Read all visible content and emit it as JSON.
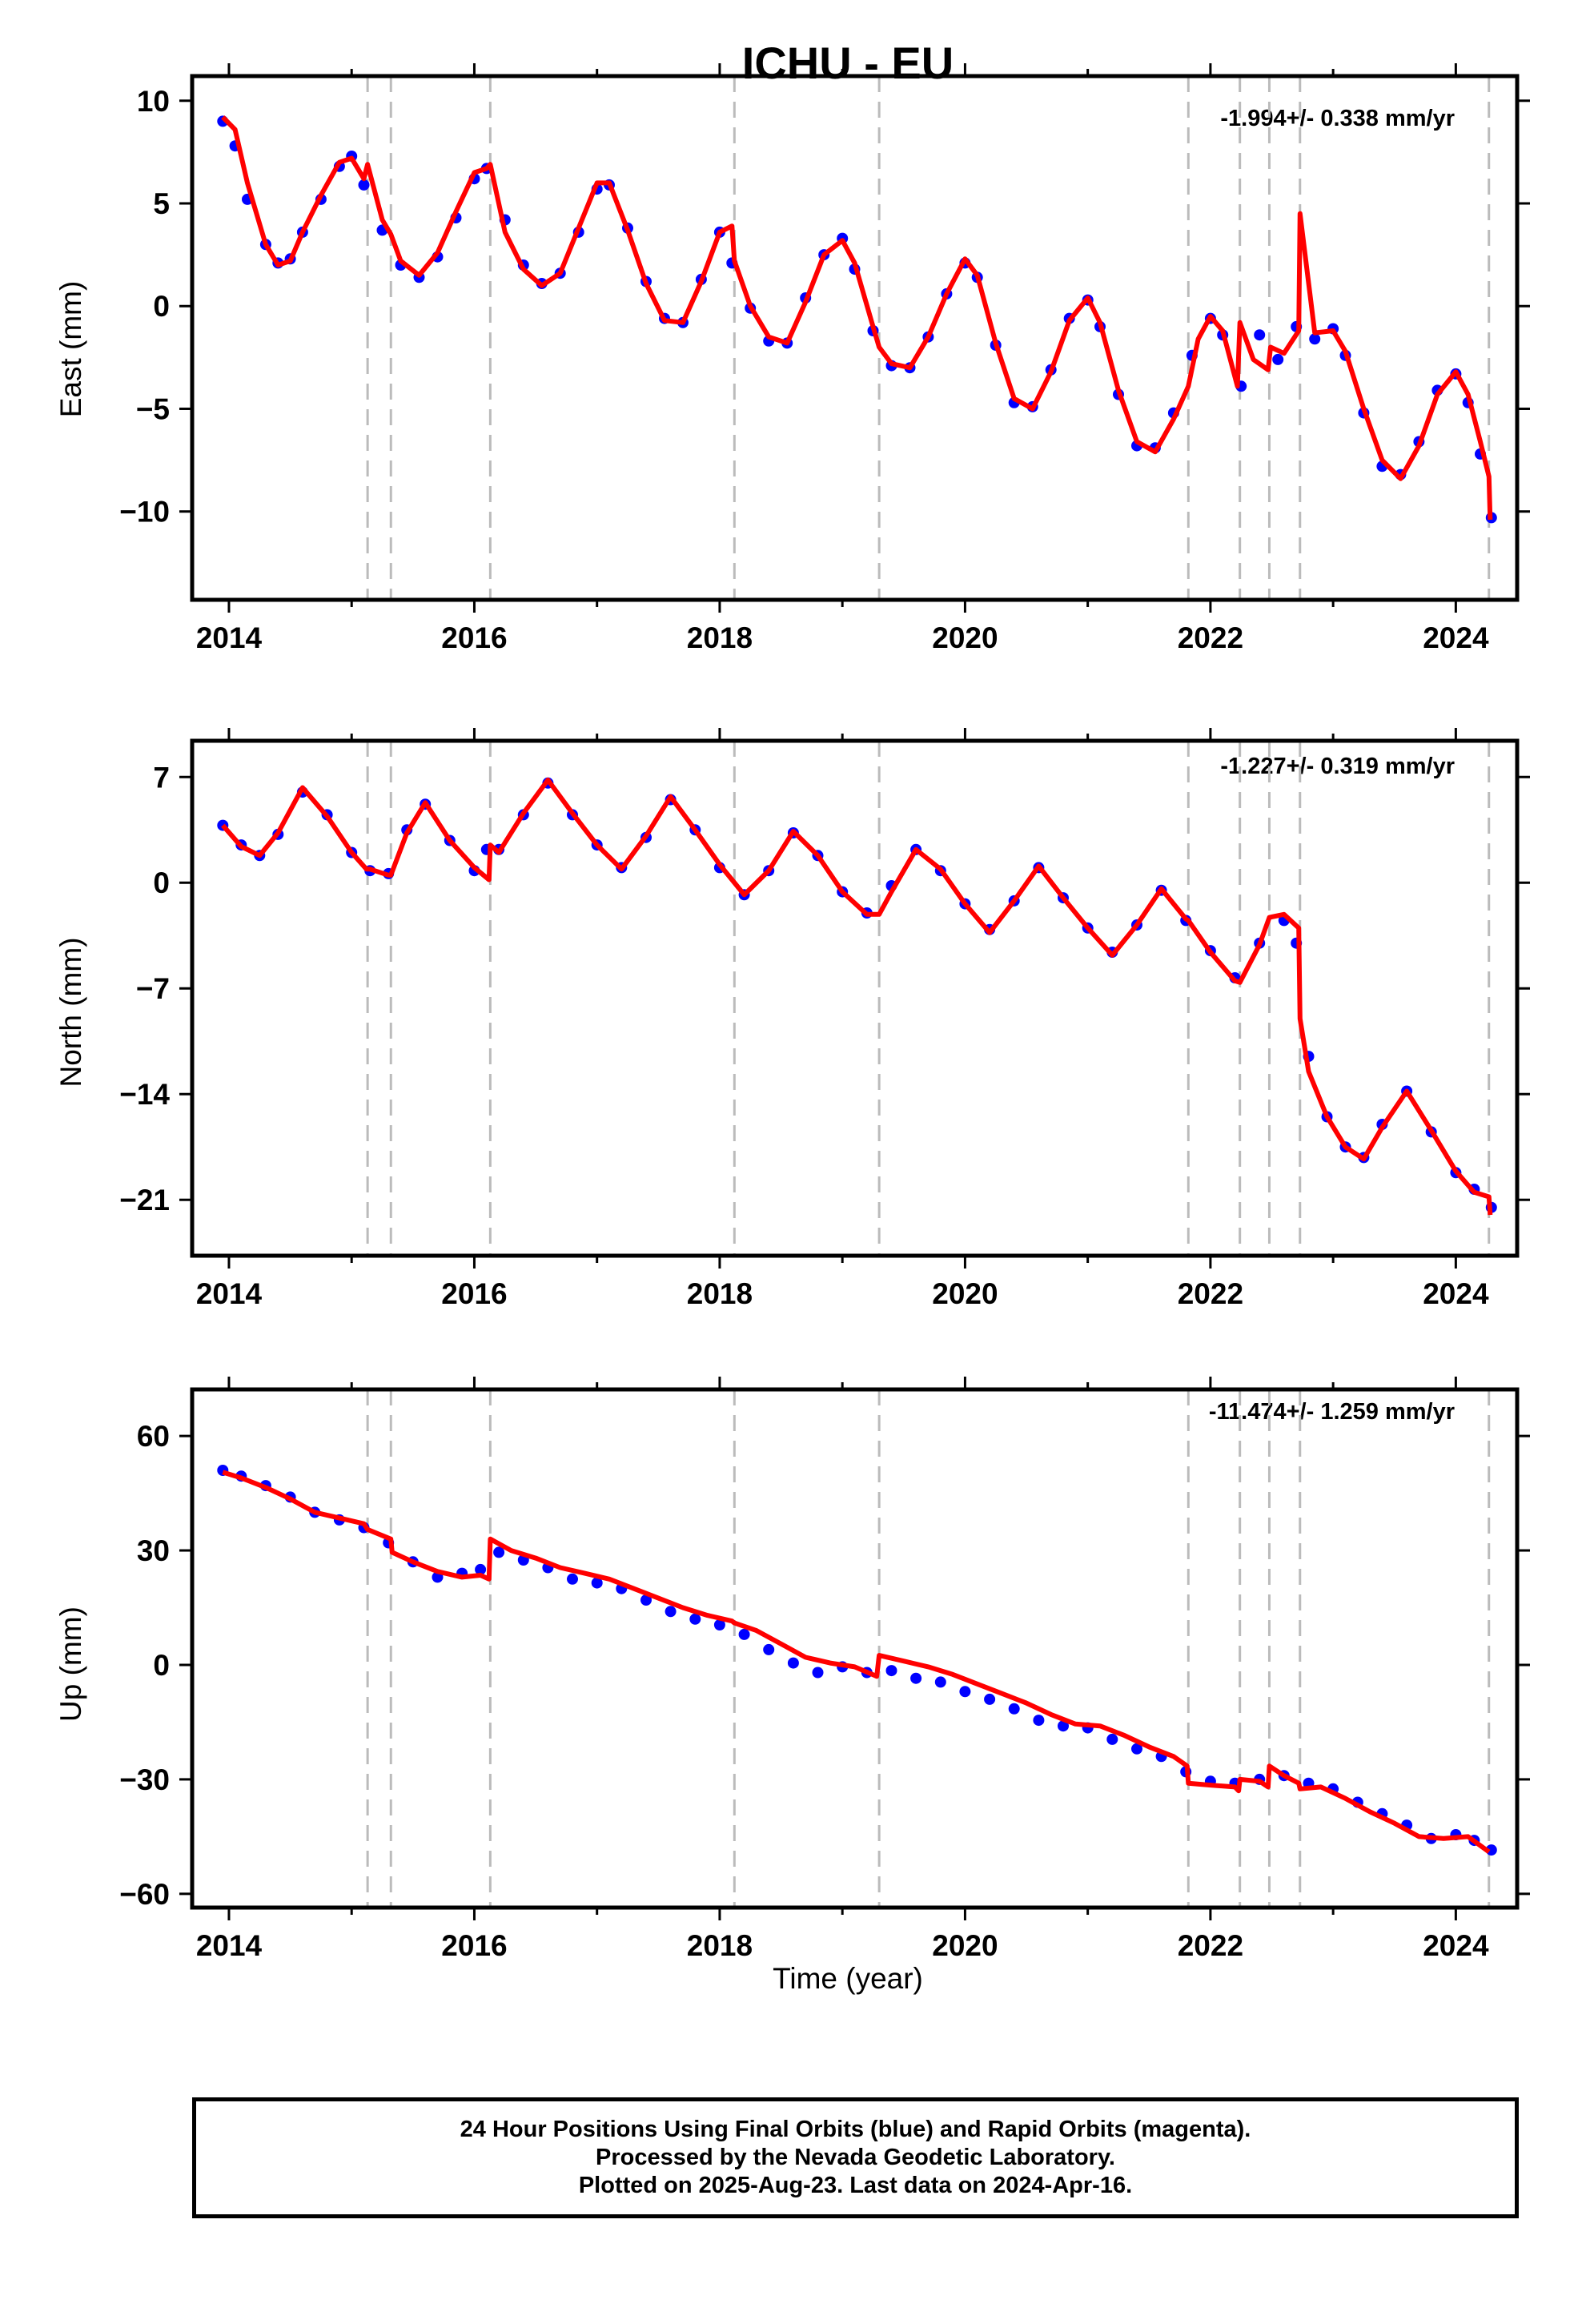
{
  "title": "ICHU - EU",
  "xlabel": "Time (year)",
  "colors": {
    "points": "#0000ff",
    "model": "#ff0000",
    "breaks": "#bbbbbb",
    "axes": "#000000"
  },
  "caption": {
    "line1": "24 Hour Positions Using Final Orbits (blue) and Rapid Orbits (magenta).",
    "line2": "Processed by the Nevada Geodetic Laboratory.",
    "line3": "Plotted on 2025-Aug-23. Last data on 2024-Apr-16."
  },
  "chart_data": [
    {
      "type": "scatter",
      "panel": "east",
      "ylabel": "East (mm)",
      "rate_label": "-1.994+/- 0.338 mm/yr",
      "xlim": [
        2013.7,
        2024.5
      ],
      "ylim": [
        -14.3,
        11.2
      ],
      "xticks": [
        2014,
        2016,
        2018,
        2020,
        2022,
        2024
      ],
      "yticks": [
        10,
        5,
        0,
        -5,
        -10
      ],
      "ytick_labels": [
        "10",
        "5",
        "0",
        "−5",
        "−10"
      ],
      "grid": false,
      "series": [
        {
          "kind": "points",
          "x": [
            2013.95,
            2014.05,
            2014.15,
            2014.3,
            2014.4,
            2014.5,
            2014.6,
            2014.75,
            2014.9,
            2015.0,
            2015.1,
            2015.25,
            2015.4,
            2015.55,
            2015.7,
            2015.85,
            2016.0,
            2016.1,
            2016.25,
            2016.4,
            2016.55,
            2016.7,
            2016.85,
            2017.0,
            2017.1,
            2017.25,
            2017.4,
            2017.55,
            2017.7,
            2017.85,
            2018.0,
            2018.1,
            2018.25,
            2018.4,
            2018.55,
            2018.7,
            2018.85,
            2019.0,
            2019.1,
            2019.25,
            2019.4,
            2019.55,
            2019.7,
            2019.85,
            2020.0,
            2020.1,
            2020.25,
            2020.4,
            2020.55,
            2020.7,
            2020.85,
            2021.0,
            2021.1,
            2021.25,
            2021.4,
            2021.55,
            2021.7,
            2021.85,
            2022.0,
            2022.1,
            2022.25,
            2022.4,
            2022.55,
            2022.7,
            2022.85,
            2023.0,
            2023.1,
            2023.25,
            2023.4,
            2023.55,
            2023.7,
            2023.85,
            2024.0,
            2024.1,
            2024.2,
            2024.29
          ],
          "y": [
            9.0,
            7.8,
            5.2,
            3.0,
            2.1,
            2.3,
            3.6,
            5.2,
            6.8,
            7.3,
            5.9,
            3.7,
            2.0,
            1.4,
            2.4,
            4.3,
            6.2,
            6.7,
            4.2,
            2.0,
            1.1,
            1.6,
            3.6,
            5.7,
            5.9,
            3.8,
            1.2,
            -0.6,
            -0.8,
            1.3,
            3.6,
            2.1,
            -0.1,
            -1.7,
            -1.8,
            0.4,
            2.5,
            3.3,
            1.8,
            -1.2,
            -2.9,
            -3.0,
            -1.5,
            0.6,
            2.1,
            1.4,
            -1.9,
            -4.7,
            -4.9,
            -3.1,
            -0.6,
            0.3,
            -1.0,
            -4.3,
            -6.8,
            -6.9,
            -5.2,
            -2.4,
            -0.6,
            -1.4,
            -3.9,
            -1.4,
            -2.6,
            -1.0,
            -1.6,
            -1.1,
            -2.4,
            -5.2,
            -7.8,
            -8.2,
            -6.6,
            -4.1,
            -3.3,
            -4.7,
            -7.2,
            -10.3
          ]
        },
        {
          "kind": "model",
          "x": [
            2013.95,
            2014.05,
            2014.15,
            2014.3,
            2014.4,
            2014.5,
            2014.6,
            2014.75,
            2014.9,
            2015.0,
            2015.1,
            2015.13,
            2015.25,
            2015.32,
            2015.4,
            2015.55,
            2015.7,
            2015.85,
            2016.0,
            2016.1,
            2016.13,
            2016.25,
            2016.4,
            2016.55,
            2016.7,
            2016.85,
            2017.0,
            2017.1,
            2017.25,
            2017.4,
            2017.55,
            2017.7,
            2017.85,
            2018.0,
            2018.1,
            2018.12,
            2018.25,
            2018.4,
            2018.55,
            2018.7,
            2018.85,
            2019.0,
            2019.1,
            2019.25,
            2019.3,
            2019.4,
            2019.55,
            2019.7,
            2019.85,
            2020.0,
            2020.1,
            2020.25,
            2020.4,
            2020.55,
            2020.7,
            2020.85,
            2021.0,
            2021.1,
            2021.25,
            2021.4,
            2021.55,
            2021.7,
            2021.82,
            2021.9,
            2022.0,
            2022.1,
            2022.22,
            2022.24,
            2022.35,
            2022.47,
            2022.49,
            2022.6,
            2022.72,
            2022.73,
            2022.85,
            2023.0,
            2023.1,
            2023.25,
            2023.4,
            2023.55,
            2023.7,
            2023.85,
            2024.0,
            2024.1,
            2024.2,
            2024.27,
            2024.28
          ],
          "y": [
            9.2,
            8.6,
            6.0,
            3.0,
            2.0,
            2.2,
            3.6,
            5.4,
            7.0,
            7.2,
            6.2,
            6.9,
            4.2,
            3.5,
            2.2,
            1.5,
            2.6,
            4.6,
            6.5,
            6.7,
            6.9,
            3.6,
            1.8,
            1.0,
            1.6,
            3.8,
            6.0,
            6.0,
            3.7,
            1.1,
            -0.7,
            -0.8,
            1.2,
            3.6,
            3.9,
            2.2,
            0.0,
            -1.5,
            -1.8,
            0.2,
            2.5,
            3.2,
            2.1,
            -1.0,
            -2.0,
            -2.8,
            -3.0,
            -1.5,
            0.6,
            2.3,
            1.5,
            -1.8,
            -4.5,
            -5.0,
            -3.2,
            -0.7,
            0.4,
            -0.8,
            -4.1,
            -6.6,
            -7.1,
            -5.5,
            -3.9,
            -1.6,
            -0.5,
            -1.2,
            -3.9,
            -0.8,
            -2.6,
            -3.1,
            -2.0,
            -2.3,
            -1.2,
            4.5,
            -1.3,
            -1.2,
            -2.2,
            -5.0,
            -7.5,
            -8.4,
            -6.8,
            -4.3,
            -3.2,
            -4.3,
            -6.6,
            -8.3,
            -10.4
          ]
        }
      ]
    },
    {
      "type": "scatter",
      "panel": "north",
      "ylabel": "North (mm)",
      "rate_label": "-1.227+/- 0.319 mm/yr",
      "xlim": [
        2013.7,
        2024.5
      ],
      "ylim": [
        -24.7,
        9.4
      ],
      "xticks": [
        2014,
        2016,
        2018,
        2020,
        2022,
        2024
      ],
      "yticks": [
        7,
        0,
        -7,
        -14,
        -21
      ],
      "ytick_labels": [
        "7",
        "0",
        "−7",
        "−14",
        "−21"
      ],
      "grid": false,
      "series": [
        {
          "kind": "points",
          "x": [
            2013.95,
            2014.1,
            2014.25,
            2014.4,
            2014.6,
            2014.8,
            2015.0,
            2015.15,
            2015.3,
            2015.45,
            2015.6,
            2015.8,
            2016.0,
            2016.1,
            2016.2,
            2016.4,
            2016.6,
            2016.8,
            2017.0,
            2017.2,
            2017.4,
            2017.6,
            2017.8,
            2018.0,
            2018.2,
            2018.4,
            2018.6,
            2018.8,
            2019.0,
            2019.2,
            2019.4,
            2019.6,
            2019.8,
            2020.0,
            2020.2,
            2020.4,
            2020.6,
            2020.8,
            2021.0,
            2021.2,
            2021.4,
            2021.6,
            2021.8,
            2022.0,
            2022.2,
            2022.4,
            2022.6,
            2022.7,
            2022.8,
            2022.95,
            2023.1,
            2023.25,
            2023.4,
            2023.6,
            2023.8,
            2024.0,
            2024.15,
            2024.29
          ],
          "y": [
            3.8,
            2.5,
            1.8,
            3.2,
            6.0,
            4.5,
            2.0,
            0.8,
            0.6,
            3.5,
            5.2,
            2.8,
            0.8,
            2.2,
            2.2,
            4.5,
            6.6,
            4.5,
            2.5,
            1.0,
            3.0,
            5.5,
            3.5,
            1.0,
            -0.8,
            0.8,
            3.3,
            1.8,
            -0.6,
            -2.0,
            -0.2,
            2.2,
            0.8,
            -1.4,
            -3.1,
            -1.2,
            1.0,
            -1.0,
            -3.0,
            -4.6,
            -2.8,
            -0.5,
            -2.5,
            -4.5,
            -6.3,
            -4.0,
            -2.5,
            -4.0,
            -11.5,
            -15.5,
            -17.5,
            -18.2,
            -16.0,
            -13.8,
            -16.5,
            -19.2,
            -20.3,
            -21.5
          ]
        },
        {
          "kind": "model",
          "x": [
            2013.95,
            2014.1,
            2014.25,
            2014.4,
            2014.6,
            2014.8,
            2015.0,
            2015.12,
            2015.15,
            2015.3,
            2015.32,
            2015.45,
            2015.6,
            2015.8,
            2016.0,
            2016.12,
            2016.13,
            2016.2,
            2016.4,
            2016.6,
            2016.8,
            2017.0,
            2017.2,
            2017.4,
            2017.6,
            2017.8,
            2018.0,
            2018.12,
            2018.2,
            2018.4,
            2018.6,
            2018.8,
            2019.0,
            2019.2,
            2019.3,
            2019.4,
            2019.6,
            2019.8,
            2020.0,
            2020.2,
            2020.4,
            2020.6,
            2020.8,
            2021.0,
            2021.2,
            2021.4,
            2021.6,
            2021.8,
            2021.82,
            2022.0,
            2022.2,
            2022.24,
            2022.4,
            2022.48,
            2022.6,
            2022.72,
            2022.73,
            2022.8,
            2022.95,
            2023.1,
            2023.25,
            2023.4,
            2023.6,
            2023.8,
            2024.0,
            2024.15,
            2024.27,
            2024.28
          ],
          "y": [
            3.8,
            2.4,
            1.8,
            3.3,
            6.3,
            4.4,
            2.0,
            0.9,
            0.9,
            0.5,
            0.5,
            3.3,
            5.3,
            2.8,
            1.0,
            0.2,
            2.5,
            2.0,
            4.6,
            6.8,
            4.6,
            2.5,
            0.9,
            3.1,
            5.7,
            3.5,
            1.2,
            0.0,
            -0.8,
            0.8,
            3.4,
            1.8,
            -0.6,
            -2.1,
            -2.1,
            -0.6,
            2.2,
            0.9,
            -1.4,
            -3.3,
            -1.2,
            1.1,
            -1.0,
            -3.0,
            -4.8,
            -2.8,
            -0.4,
            -2.4,
            -2.5,
            -4.6,
            -6.5,
            -6.6,
            -4.1,
            -2.3,
            -2.1,
            -3.0,
            -9.0,
            -12.5,
            -15.5,
            -17.5,
            -18.3,
            -16.2,
            -13.8,
            -16.4,
            -19.1,
            -20.5,
            -20.8,
            -22.0
          ]
        }
      ]
    },
    {
      "type": "scatter",
      "panel": "up",
      "ylabel": "Up (mm)",
      "rate_label": "-11.474+/- 1.259 mm/yr",
      "xlim": [
        2013.7,
        2024.5
      ],
      "ylim": [
        -63.6,
        72.2
      ],
      "xticks": [
        2014,
        2016,
        2018,
        2020,
        2022,
        2024
      ],
      "yticks": [
        60,
        30,
        0,
        -30,
        -60
      ],
      "ytick_labels": [
        "60",
        "30",
        "0",
        "−30",
        "−60"
      ],
      "grid": false,
      "series": [
        {
          "kind": "points",
          "x": [
            2013.95,
            2014.1,
            2014.3,
            2014.5,
            2014.7,
            2014.9,
            2015.1,
            2015.3,
            2015.5,
            2015.7,
            2015.9,
            2016.05,
            2016.2,
            2016.4,
            2016.6,
            2016.8,
            2017.0,
            2017.2,
            2017.4,
            2017.6,
            2017.8,
            2018.0,
            2018.2,
            2018.4,
            2018.6,
            2018.8,
            2019.0,
            2019.2,
            2019.4,
            2019.6,
            2019.8,
            2020.0,
            2020.2,
            2020.4,
            2020.6,
            2020.8,
            2021.0,
            2021.2,
            2021.4,
            2021.6,
            2021.8,
            2022.0,
            2022.2,
            2022.4,
            2022.6,
            2022.8,
            2023.0,
            2023.2,
            2023.4,
            2023.6,
            2023.8,
            2024.0,
            2024.15,
            2024.29
          ],
          "y": [
            51.0,
            49.5,
            47.0,
            44.0,
            40.0,
            38.0,
            36.0,
            32.0,
            27.0,
            23.0,
            24.0,
            25.0,
            29.5,
            27.5,
            25.5,
            22.5,
            21.5,
            20.0,
            17.0,
            14.0,
            12.0,
            10.5,
            8.0,
            4.0,
            0.5,
            -2.0,
            -0.5,
            -2.0,
            -1.5,
            -3.5,
            -4.5,
            -7.0,
            -9.0,
            -11.5,
            -14.5,
            -16.0,
            -16.5,
            -19.5,
            -22.0,
            -24.0,
            -28.0,
            -30.5,
            -31.0,
            -30.0,
            -29.0,
            -31.0,
            -32.5,
            -36.0,
            -39.0,
            -42.0,
            -45.5,
            -44.5,
            -46.0,
            -48.5
          ]
        },
        {
          "kind": "model",
          "x": [
            2013.95,
            2014.1,
            2014.3,
            2014.5,
            2014.7,
            2014.9,
            2015.1,
            2015.13,
            2015.32,
            2015.33,
            2015.5,
            2015.7,
            2015.9,
            2016.05,
            2016.12,
            2016.13,
            2016.3,
            2016.5,
            2016.7,
            2016.9,
            2017.1,
            2017.3,
            2017.5,
            2017.7,
            2017.9,
            2018.1,
            2018.12,
            2018.3,
            2018.5,
            2018.7,
            2018.9,
            2019.1,
            2019.28,
            2019.3,
            2019.5,
            2019.7,
            2019.9,
            2020.1,
            2020.3,
            2020.5,
            2020.7,
            2020.9,
            2021.1,
            2021.3,
            2021.5,
            2021.7,
            2021.81,
            2021.82,
            2022.0,
            2022.2,
            2022.23,
            2022.24,
            2022.4,
            2022.47,
            2022.48,
            2022.6,
            2022.72,
            2022.73,
            2022.9,
            2023.1,
            2023.3,
            2023.5,
            2023.7,
            2023.9,
            2024.1,
            2024.27
          ],
          "y": [
            50.5,
            49.0,
            46.5,
            43.5,
            40.0,
            38.5,
            37.0,
            35.5,
            33.0,
            29.5,
            27.0,
            24.5,
            23.0,
            23.5,
            22.5,
            33.0,
            30.0,
            28.0,
            25.5,
            24.0,
            22.5,
            20.0,
            17.5,
            15.0,
            13.0,
            11.5,
            11.0,
            9.0,
            5.5,
            2.0,
            0.5,
            -0.5,
            -3.0,
            2.5,
            1.0,
            -0.5,
            -2.5,
            -5.0,
            -7.5,
            -10.0,
            -13.0,
            -15.5,
            -16.0,
            -18.5,
            -21.5,
            -24.0,
            -26.5,
            -31.0,
            -31.5,
            -32.0,
            -33.0,
            -30.0,
            -30.5,
            -32.0,
            -26.5,
            -29.0,
            -31.0,
            -32.5,
            -32.0,
            -35.0,
            -38.5,
            -41.5,
            -45.0,
            -45.5,
            -45.0,
            -49.0
          ]
        }
      ]
    }
  ],
  "offsets_years": [
    2015.13,
    2015.32,
    2016.13,
    2018.12,
    2019.3,
    2021.82,
    2022.24,
    2022.48,
    2022.73,
    2024.27
  ]
}
